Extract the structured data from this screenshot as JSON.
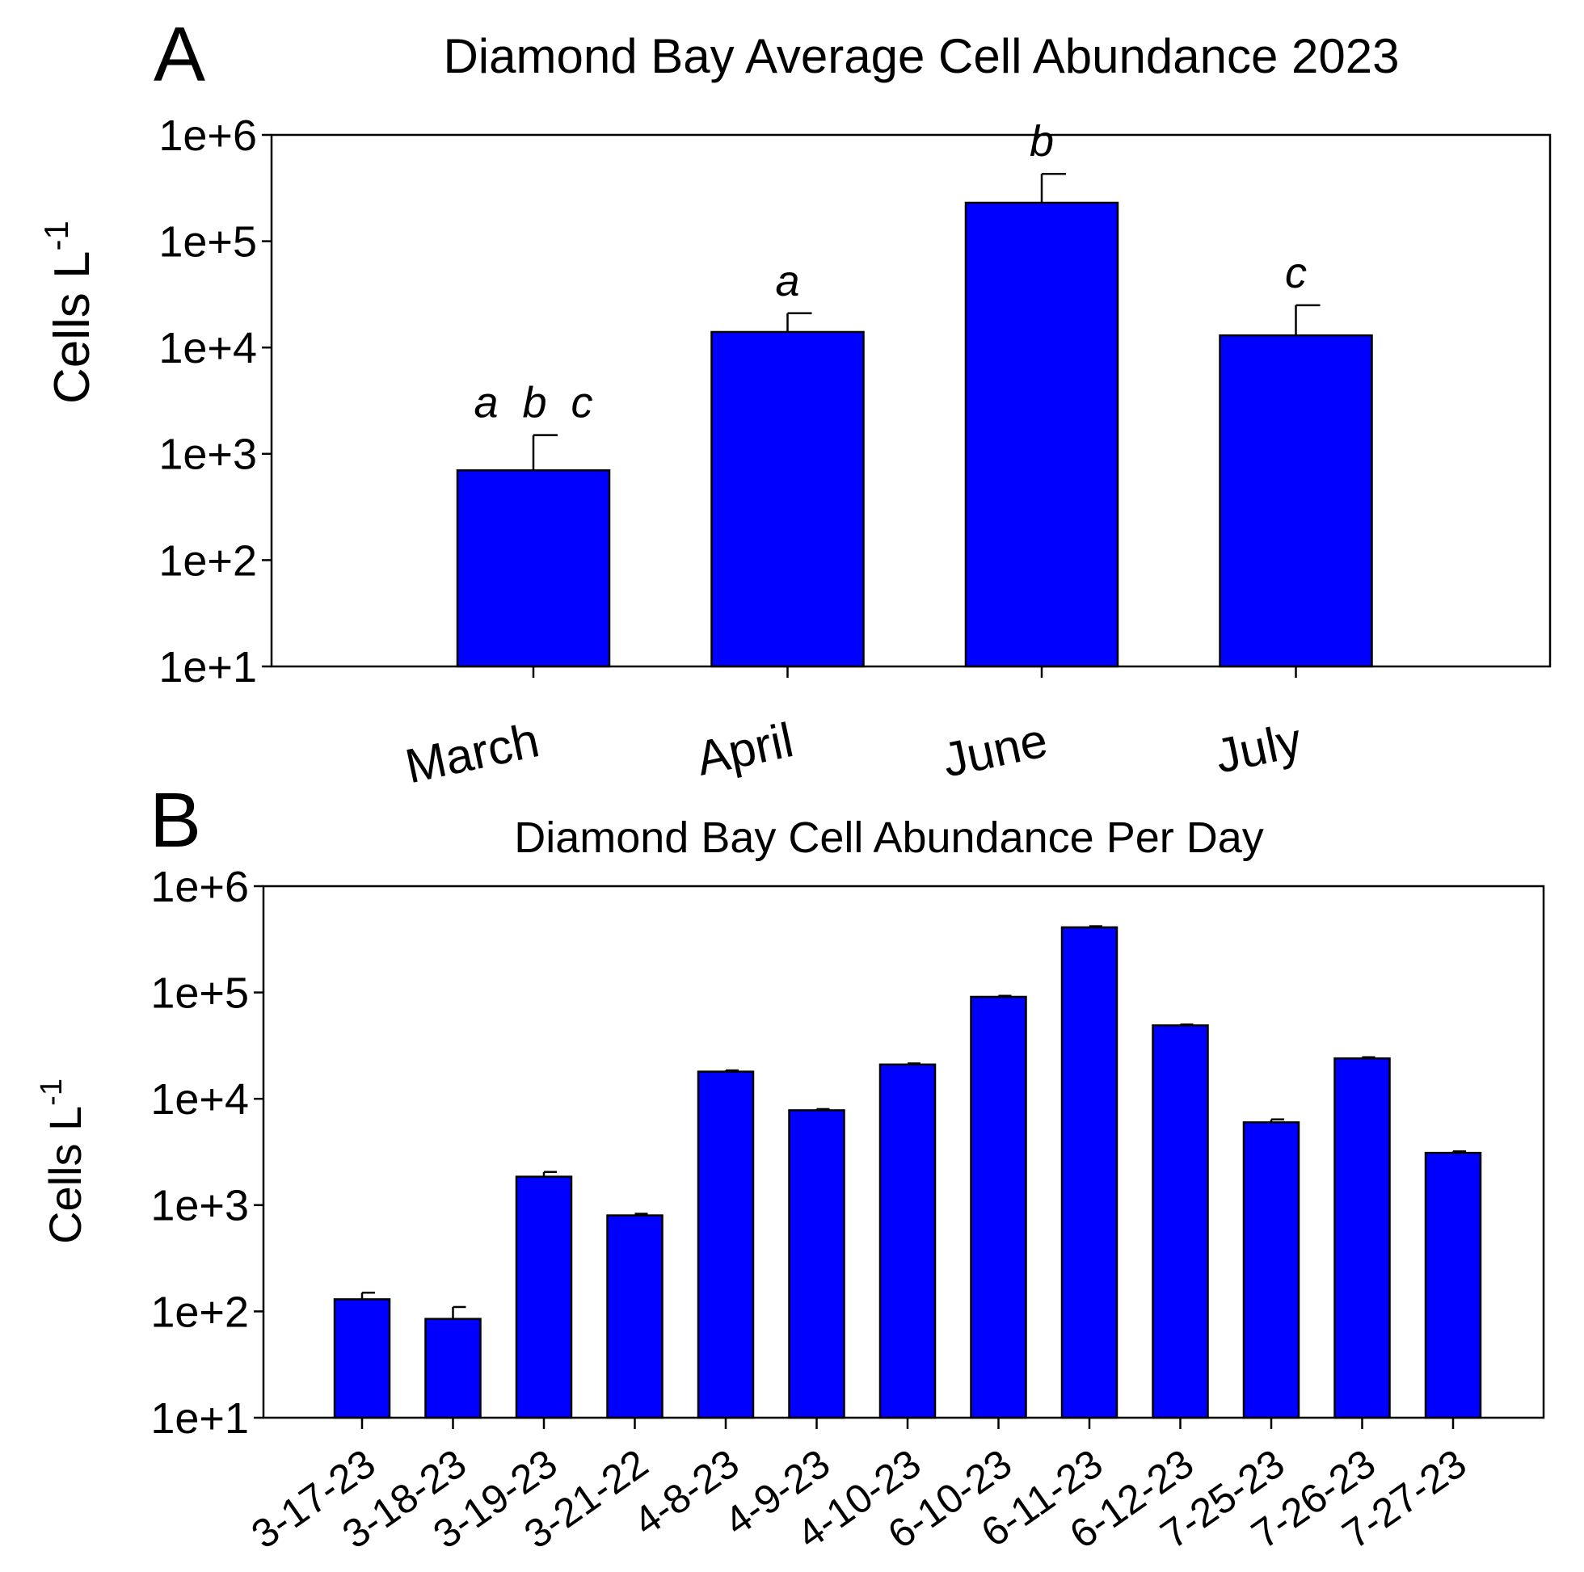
{
  "chart_data": [
    {
      "panel_label": "A",
      "type": "bar",
      "title": "Diamond Bay Average Cell Abundance 2023",
      "ylabel_main": "Cells L",
      "ylabel_sup": "-1",
      "xlabel": "",
      "yscale": "log",
      "ylim": [
        10,
        1000000
      ],
      "yticks": [
        "1e+1",
        "1e+2",
        "1e+3",
        "1e+4",
        "1e+5",
        "1e+6"
      ],
      "categories": [
        "March",
        "April",
        "June",
        "July"
      ],
      "values": [
        700,
        14000,
        230000,
        13000
      ],
      "errors_upper": [
        1500,
        21000,
        430000,
        25000
      ],
      "letters": [
        "a  b  c",
        "a",
        "b",
        "c"
      ],
      "bar_color": "#0000FF"
    },
    {
      "panel_label": "B",
      "type": "bar",
      "title": "Diamond Bay Cell Abundance Per Day",
      "ylabel_main": "Cells L",
      "ylabel_sup": "-1",
      "xlabel": "",
      "yscale": "log",
      "ylim": [
        10,
        1000000
      ],
      "yticks": [
        "1e+1",
        "1e+2",
        "1e+3",
        "1e+4",
        "1e+5",
        "1e+6"
      ],
      "categories": [
        "3-17-23",
        "3-18-23",
        "3-19-23",
        "3-21-22",
        "4-8-23",
        "4-9-23",
        "4-10-23",
        "6-10-23",
        "6-11-23",
        "6-12-23",
        "7-25-23",
        "7-26-23",
        "7-27-23"
      ],
      "values": [
        130,
        85,
        1850,
        800,
        18000,
        7800,
        21000,
        91000,
        410000,
        49000,
        6000,
        24000,
        3100
      ],
      "errors_upper": [
        150,
        110,
        2050,
        800,
        18500,
        8000,
        21500,
        93000,
        420000,
        50000,
        6400,
        24600,
        3200
      ],
      "bar_color": "#0000FF"
    }
  ]
}
